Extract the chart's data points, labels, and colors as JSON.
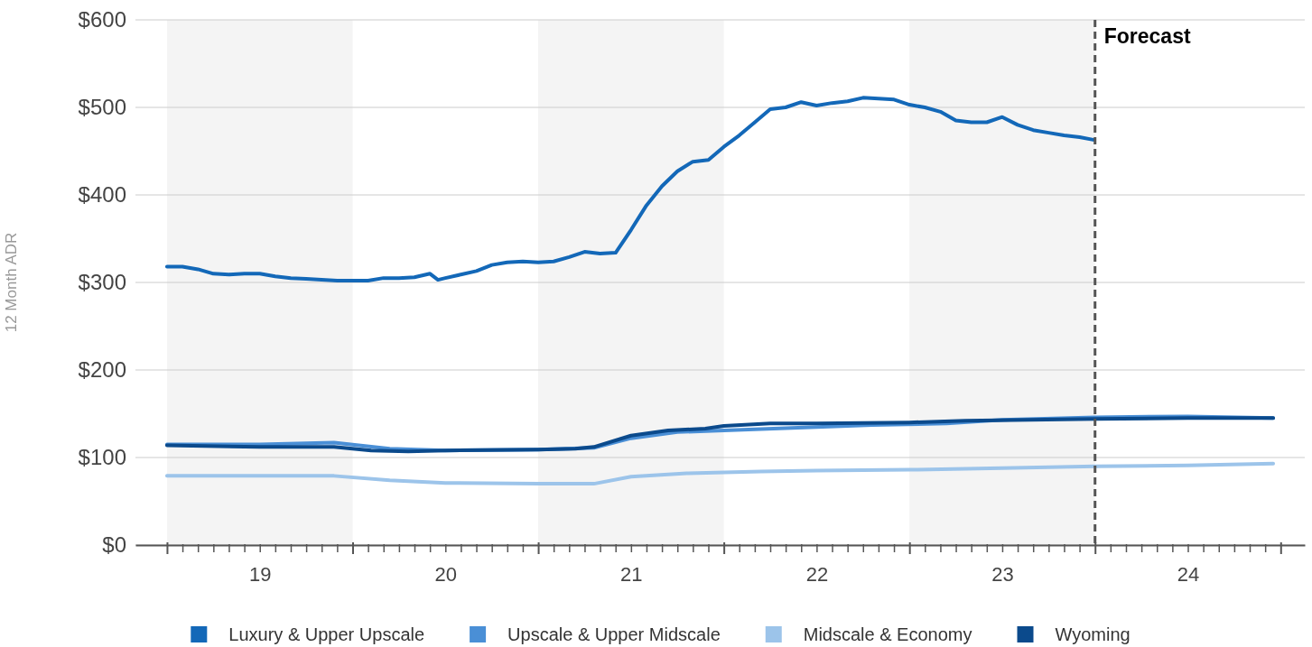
{
  "chart_data": {
    "type": "line",
    "ylabel": "12 Month ADR",
    "xlim": [
      18.33,
      24.63
    ],
    "ylim": [
      0,
      600
    ],
    "yticks": [
      {
        "value": 0,
        "label": "$0"
      },
      {
        "value": 100,
        "label": "$100"
      },
      {
        "value": 200,
        "label": "$200"
      },
      {
        "value": 300,
        "label": "$300"
      },
      {
        "value": 400,
        "label": "$400"
      },
      {
        "value": 500,
        "label": "$500"
      },
      {
        "value": 600,
        "label": "$600"
      }
    ],
    "xticks": [
      {
        "value": 18.5,
        "label": null
      },
      {
        "value": 18.5833,
        "label": null
      },
      {
        "value": 18.6667,
        "label": null
      },
      {
        "value": 18.75,
        "label": null
      },
      {
        "value": 18.8333,
        "label": null
      },
      {
        "value": 18.9167,
        "label": null
      },
      19,
      {
        "value": 19.0833,
        "label": null
      },
      {
        "value": 19.1667,
        "label": null
      },
      {
        "value": 19.25,
        "label": null
      },
      {
        "value": 19.3333,
        "label": null
      },
      {
        "value": 19.4167,
        "label": null
      },
      {
        "value": 19.5,
        "label": null
      },
      {
        "value": 19.5833,
        "label": null
      },
      {
        "value": 19.6667,
        "label": null
      },
      {
        "value": 19.75,
        "label": null
      },
      {
        "value": 19.8333,
        "label": null
      },
      {
        "value": 19.9167,
        "label": null
      },
      20,
      {
        "value": 20.0833,
        "label": null
      },
      {
        "value": 20.1667,
        "label": null
      },
      {
        "value": 20.25,
        "label": null
      },
      {
        "value": 20.3333,
        "label": null
      },
      {
        "value": 20.4167,
        "label": null
      },
      {
        "value": 20.5,
        "label": null
      },
      {
        "value": 20.5833,
        "label": null
      },
      {
        "value": 20.6667,
        "label": null
      },
      {
        "value": 20.75,
        "label": null
      },
      {
        "value": 20.8333,
        "label": null
      },
      {
        "value": 20.9167,
        "label": null
      },
      21,
      {
        "value": 21.0833,
        "label": null
      },
      {
        "value": 21.1667,
        "label": null
      },
      {
        "value": 21.25,
        "label": null
      },
      {
        "value": 21.3333,
        "label": null
      },
      {
        "value": 21.4167,
        "label": null
      },
      {
        "value": 21.5,
        "label": null
      },
      {
        "value": 21.5833,
        "label": null
      },
      {
        "value": 21.6667,
        "label": null
      },
      {
        "value": 21.75,
        "label": null
      },
      {
        "value": 21.8333,
        "label": null
      },
      {
        "value": 21.9167,
        "label": null
      },
      22,
      {
        "value": 22.0833,
        "label": null
      },
      {
        "value": 22.1667,
        "label": null
      },
      {
        "value": 22.25,
        "label": null
      },
      {
        "value": 22.3333,
        "label": null
      },
      {
        "value": 22.4167,
        "label": null
      },
      {
        "value": 22.5,
        "label": null
      },
      {
        "value": 22.5833,
        "label": null
      },
      {
        "value": 22.6667,
        "label": null
      },
      {
        "value": 22.75,
        "label": null
      },
      {
        "value": 22.8333,
        "label": null
      },
      {
        "value": 22.9167,
        "label": null
      },
      23,
      {
        "value": 23.0833,
        "label": null
      },
      {
        "value": 23.1667,
        "label": null
      },
      {
        "value": 23.25,
        "label": null
      },
      {
        "value": 23.3333,
        "label": null
      },
      {
        "value": 23.4167,
        "label": null
      },
      {
        "value": 23.5,
        "label": null
      },
      {
        "value": 23.5833,
        "label": null
      },
      {
        "value": 23.6667,
        "label": null
      },
      {
        "value": 23.75,
        "label": null
      },
      {
        "value": 23.8333,
        "label": null
      },
      {
        "value": 23.9167,
        "label": null
      },
      24,
      {
        "value": 24.0833,
        "label": null
      },
      {
        "value": 24.1667,
        "label": null
      },
      {
        "value": 24.25,
        "label": null
      },
      {
        "value": 24.3333,
        "label": null
      },
      {
        "value": 24.4167,
        "label": null
      },
      {
        "value": 24.5,
        "label": null
      }
    ],
    "grid": "y",
    "legend": "bottom",
    "line_style": "solid",
    "marker": "none",
    "bands": [
      {
        "axis": "x",
        "from": 18.5,
        "to": 19.5,
        "label": null,
        "color": "#f4f4f4"
      },
      {
        "axis": "x",
        "from": 20.5,
        "to": 21.5,
        "label": null,
        "color": "#f4f4f4"
      },
      {
        "axis": "x",
        "from": 22.5,
        "to": 23.5,
        "label": null,
        "color": "#f4f4f4"
      }
    ],
    "ref_lines": [
      {
        "axis": "x",
        "value": 23.5,
        "label": "Forecast",
        "color": "#555555",
        "line_style": "dashed"
      }
    ],
    "series": [
      {
        "name": "Luxury & Upper Upscale",
        "color": "#1368b8",
        "x": [
          18.5,
          18.583,
          18.667,
          18.75,
          18.833,
          18.917,
          19,
          19.083,
          19.167,
          19.25,
          19.333,
          19.417,
          19.5,
          19.583,
          19.667,
          19.75,
          19.833,
          19.917,
          19.96,
          20,
          20.083,
          20.167,
          20.25,
          20.333,
          20.417,
          20.5,
          20.583,
          20.667,
          20.75,
          20.833,
          20.917,
          21,
          21.083,
          21.167,
          21.25,
          21.333,
          21.417,
          21.5,
          21.583,
          21.667,
          21.75,
          21.833,
          21.917,
          22,
          22.083,
          22.167,
          22.25,
          22.333,
          22.417,
          22.5,
          22.583,
          22.667,
          22.75,
          22.833,
          22.917,
          23,
          23.083,
          23.167,
          23.25,
          23.333,
          23.417,
          23.49
        ],
        "values": [
          318,
          318,
          315,
          310,
          309,
          310,
          310,
          307,
          305,
          304,
          303,
          302,
          302,
          302,
          305,
          305,
          306,
          310,
          303,
          305,
          309,
          313,
          320,
          323,
          324,
          323,
          324,
          329,
          335,
          333,
          334,
          360,
          388,
          410,
          427,
          438,
          440,
          455,
          468,
          483,
          498,
          500,
          506,
          502,
          505,
          507,
          511,
          510,
          509,
          503,
          500,
          495,
          485,
          483,
          483,
          489,
          480,
          474,
          471,
          468,
          466,
          463
        ]
      },
      {
        "name": "Upscale & Upper Midscale",
        "color": "#4a8fd6",
        "x": [
          18.5,
          19,
          19.4,
          19.7,
          20,
          20.5,
          20.8,
          21,
          21.25,
          21.5,
          21.9,
          22.3,
          22.7,
          23,
          23.5,
          24,
          24.46
        ],
        "values": [
          115,
          115,
          117,
          110,
          108,
          109,
          111,
          122,
          129,
          131,
          134,
          137,
          139,
          143,
          146,
          147,
          145
        ]
      },
      {
        "name": "Midscale & Economy",
        "color": "#9cc4ea",
        "x": [
          18.5,
          19,
          19.4,
          19.7,
          20,
          20.5,
          20.8,
          21,
          21.3,
          21.7,
          22,
          22.5,
          23,
          23.5,
          24,
          24.46
        ],
        "values": [
          79,
          79,
          79,
          74,
          71,
          70,
          70,
          78,
          82,
          84,
          85,
          86,
          88,
          90,
          91,
          93
        ]
      },
      {
        "name": "Wyoming",
        "color": "#0b4a8c",
        "x": [
          18.5,
          19,
          19.4,
          19.6,
          19.8,
          20,
          20.5,
          20.7,
          20.8,
          21,
          21.2,
          21.4,
          21.5,
          21.75,
          22,
          22.5,
          22.8,
          23.5,
          24,
          24.46
        ],
        "values": [
          114,
          112,
          112,
          108,
          107,
          108,
          109,
          110,
          112,
          125,
          131,
          133,
          136,
          139,
          139,
          140,
          142,
          144,
          145,
          145
        ]
      }
    ]
  }
}
